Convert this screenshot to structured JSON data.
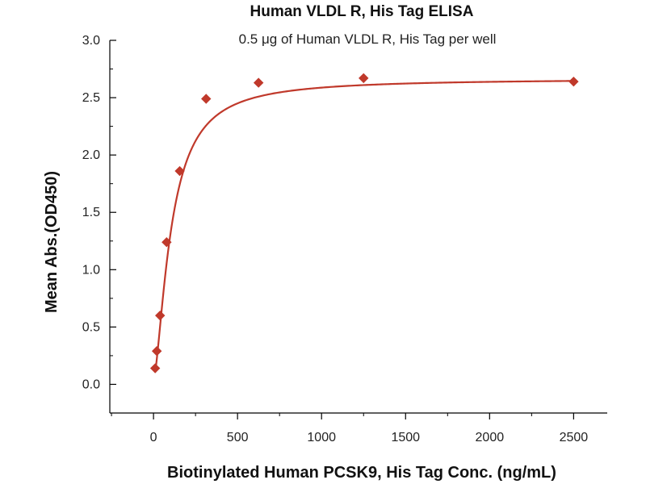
{
  "chart_data": {
    "type": "scatter",
    "title": "Human VLDL R, His Tag ELISA",
    "subtitle": "0.5 μg of Human VLDL R, His Tag per well",
    "xlabel": "Biotinylated Human PCSK9, His Tag Conc. (ng/mL)",
    "ylabel": "Mean Abs.(OD450)",
    "xlim": [
      -260,
      2700
    ],
    "ylim": [
      -0.25,
      3.0
    ],
    "x_ticks": [
      0,
      500,
      1000,
      1500,
      2000,
      2500
    ],
    "y_ticks": [
      0.0,
      0.5,
      1.0,
      1.5,
      2.0,
      2.5,
      3.0
    ],
    "x_tick_labels": [
      "0",
      "500",
      "1000",
      "1500",
      "2000",
      "2500"
    ],
    "y_tick_labels": [
      "0.0",
      "0.5",
      "1.0",
      "1.5",
      "2.0",
      "2.5",
      "3.0"
    ],
    "grid": false,
    "color": "#c0392b",
    "series": [
      {
        "x": [
          9.8,
          19.5,
          39,
          78,
          156,
          313,
          625,
          1250,
          2500
        ],
        "y": [
          0.14,
          0.29,
          0.6,
          1.24,
          1.86,
          2.49,
          2.63,
          2.67,
          2.64
        ]
      }
    ]
  }
}
